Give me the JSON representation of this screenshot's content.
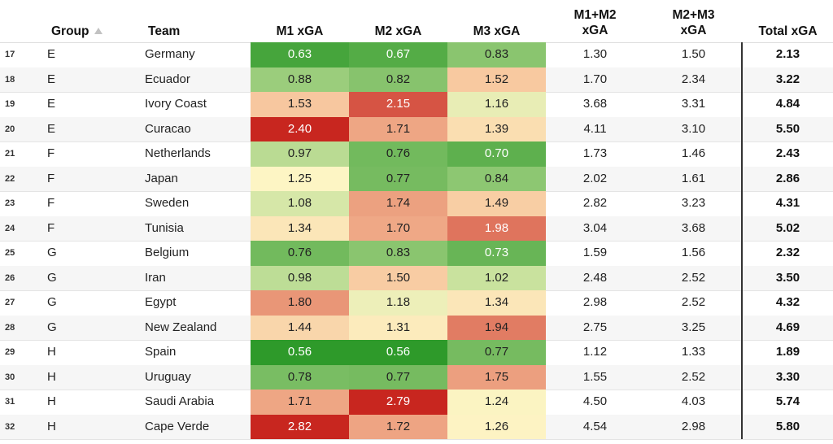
{
  "headers": {
    "group": "Group",
    "team": "Team",
    "m1": "M1 xGA",
    "m2": "M2 xGA",
    "m3": "M3 xGA",
    "m12_line1": "M1+M2",
    "m12_line2": "xGA",
    "m23_line1": "M2+M3",
    "m23_line2": "xGA",
    "total": "Total xGA"
  },
  "sort": {
    "column": "Group",
    "direction": "ascending",
    "icon": "sort-up-icon"
  },
  "colors": {
    "green_dark": "#2e9a2a",
    "green_light": "#c4e09b",
    "cream": "#fdf5c4",
    "peach": "#f7c49c",
    "red_dark": "#c8261f",
    "row_alt": "#f6f6f6"
  },
  "rows": [
    {
      "idx": "17",
      "group": "E",
      "team": "Germany",
      "m1": "0.63",
      "m2": "0.67",
      "m3": "0.83",
      "m12": "1.30",
      "m23": "1.50",
      "total": "2.13"
    },
    {
      "idx": "18",
      "group": "E",
      "team": "Ecuador",
      "m1": "0.88",
      "m2": "0.82",
      "m3": "1.52",
      "m12": "1.70",
      "m23": "2.34",
      "total": "3.22"
    },
    {
      "idx": "19",
      "group": "E",
      "team": "Ivory Coast",
      "m1": "1.53",
      "m2": "2.15",
      "m3": "1.16",
      "m12": "3.68",
      "m23": "3.31",
      "total": "4.84"
    },
    {
      "idx": "20",
      "group": "E",
      "team": "Curacao",
      "m1": "2.40",
      "m2": "1.71",
      "m3": "1.39",
      "m12": "4.11",
      "m23": "3.10",
      "total": "5.50"
    },
    {
      "idx": "21",
      "group": "F",
      "team": "Netherlands",
      "m1": "0.97",
      "m2": "0.76",
      "m3": "0.70",
      "m12": "1.73",
      "m23": "1.46",
      "total": "2.43"
    },
    {
      "idx": "22",
      "group": "F",
      "team": "Japan",
      "m1": "1.25",
      "m2": "0.77",
      "m3": "0.84",
      "m12": "2.02",
      "m23": "1.61",
      "total": "2.86"
    },
    {
      "idx": "23",
      "group": "F",
      "team": "Sweden",
      "m1": "1.08",
      "m2": "1.74",
      "m3": "1.49",
      "m12": "2.82",
      "m23": "3.23",
      "total": "4.31"
    },
    {
      "idx": "24",
      "group": "F",
      "team": "Tunisia",
      "m1": "1.34",
      "m2": "1.70",
      "m3": "1.98",
      "m12": "3.04",
      "m23": "3.68",
      "total": "5.02"
    },
    {
      "idx": "25",
      "group": "G",
      "team": "Belgium",
      "m1": "0.76",
      "m2": "0.83",
      "m3": "0.73",
      "m12": "1.59",
      "m23": "1.56",
      "total": "2.32"
    },
    {
      "idx": "26",
      "group": "G",
      "team": "Iran",
      "m1": "0.98",
      "m2": "1.50",
      "m3": "1.02",
      "m12": "2.48",
      "m23": "2.52",
      "total": "3.50"
    },
    {
      "idx": "27",
      "group": "G",
      "team": "Egypt",
      "m1": "1.80",
      "m2": "1.18",
      "m3": "1.34",
      "m12": "2.98",
      "m23": "2.52",
      "total": "4.32"
    },
    {
      "idx": "28",
      "group": "G",
      "team": "New Zealand",
      "m1": "1.44",
      "m2": "1.31",
      "m3": "1.94",
      "m12": "2.75",
      "m23": "3.25",
      "total": "4.69"
    },
    {
      "idx": "29",
      "group": "H",
      "team": "Spain",
      "m1": "0.56",
      "m2": "0.56",
      "m3": "0.77",
      "m12": "1.12",
      "m23": "1.33",
      "total": "1.89"
    },
    {
      "idx": "30",
      "group": "H",
      "team": "Uruguay",
      "m1": "0.78",
      "m2": "0.77",
      "m3": "1.75",
      "m12": "1.55",
      "m23": "2.52",
      "total": "3.30"
    },
    {
      "idx": "31",
      "group": "H",
      "team": "Saudi Arabia",
      "m1": "1.71",
      "m2": "2.79",
      "m3": "1.24",
      "m12": "4.50",
      "m23": "4.03",
      "total": "5.74"
    },
    {
      "idx": "32",
      "group": "H",
      "team": "Cape Verde",
      "m1": "2.82",
      "m2": "1.72",
      "m3": "1.26",
      "m12": "4.54",
      "m23": "2.98",
      "total": "5.80"
    }
  ]
}
